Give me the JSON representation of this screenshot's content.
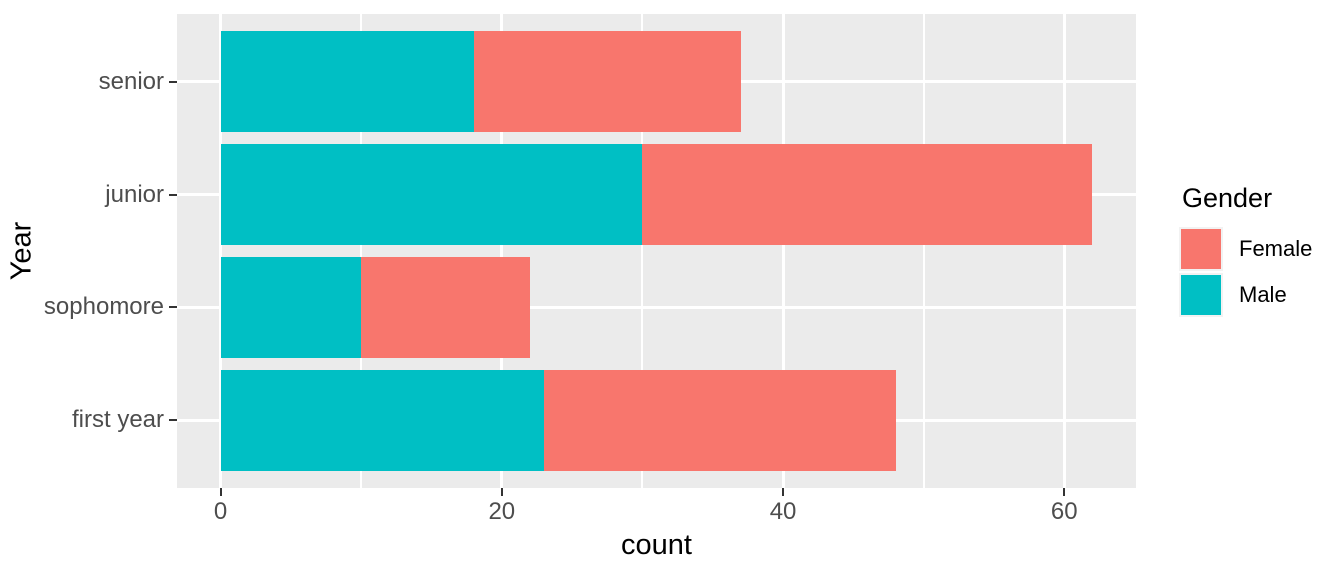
{
  "chart_data": {
    "type": "bar",
    "orientation": "horizontal",
    "stacked": true,
    "title": "",
    "xlabel": "count",
    "ylabel": "Year",
    "categories": [
      "senior",
      "junior",
      "sophomore",
      "first year"
    ],
    "series": [
      {
        "name": "Male",
        "color": "#00BFC4",
        "values": [
          18,
          30,
          10,
          23
        ]
      },
      {
        "name": "Female",
        "color": "#F8766D",
        "values": [
          19,
          32,
          12,
          25
        ]
      }
    ],
    "stack_totals": [
      37,
      62,
      22,
      48
    ],
    "xlim": [
      -3.1,
      65.1
    ],
    "x_ticks": [
      0,
      20,
      40,
      60
    ],
    "x_minor_ticks": [
      10,
      30,
      50
    ],
    "grid": "white major+minor vertical, white major horizontal, on gray panel",
    "legend_position": "right",
    "panel_bg": "#EBEBEB",
    "gridline_color": "#FFFFFF",
    "tick_mark_color": "#333333",
    "tick_label_color": "#4D4D4D",
    "axis_title_color": "#000000",
    "legend": {
      "title": "Gender",
      "key_bg": "#F2F2F2",
      "entries": [
        {
          "label": "Female",
          "color": "#F8766D"
        },
        {
          "label": "Male",
          "color": "#00BFC4"
        }
      ]
    }
  }
}
